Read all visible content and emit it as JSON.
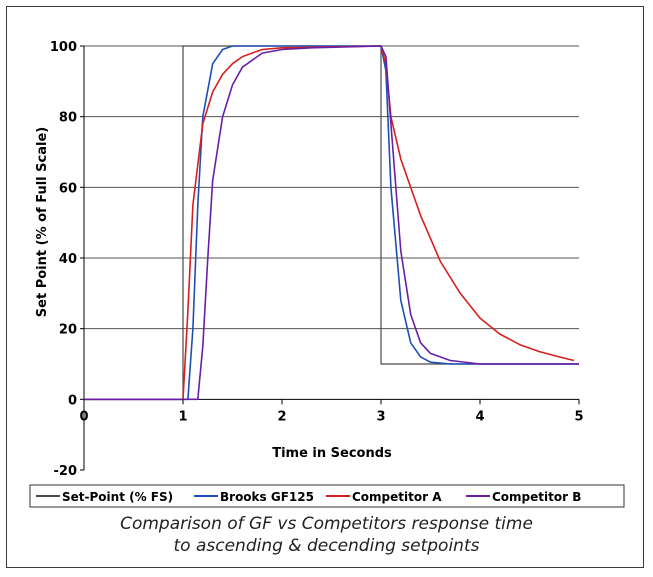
{
  "chart_data": {
    "type": "line",
    "xlabel": "Time in Seconds",
    "ylabel": "Set Point (% of Full Scale)",
    "xlim": [
      0,
      5
    ],
    "ylim": [
      -20,
      100
    ],
    "x_ticks": [
      0,
      1,
      2,
      3,
      4,
      5
    ],
    "y_ticks": [
      100,
      80,
      60,
      40,
      20,
      0,
      -20
    ],
    "grid": "horizontal",
    "legend_position": "bottom",
    "series": [
      {
        "name": "Set-Point (% FS)",
        "color": "#4a4a4a",
        "points": [
          [
            0,
            0
          ],
          [
            1,
            0
          ],
          [
            1,
            100
          ],
          [
            3,
            100
          ],
          [
            3,
            10
          ],
          [
            5,
            10
          ]
        ]
      },
      {
        "name": "Brooks GF125",
        "color": "#1f4fb4",
        "points": [
          [
            0,
            0
          ],
          [
            1.05,
            0
          ],
          [
            1.1,
            20
          ],
          [
            1.15,
            55
          ],
          [
            1.2,
            80
          ],
          [
            1.3,
            95
          ],
          [
            1.4,
            99
          ],
          [
            1.5,
            100
          ],
          [
            3.0,
            100
          ],
          [
            3.05,
            93
          ],
          [
            3.1,
            60
          ],
          [
            3.2,
            28
          ],
          [
            3.3,
            16
          ],
          [
            3.4,
            12
          ],
          [
            3.5,
            10.5
          ],
          [
            3.7,
            10
          ],
          [
            5,
            10
          ]
        ]
      },
      {
        "name": "Competitor A",
        "color": "#d62020",
        "points": [
          [
            0,
            0
          ],
          [
            1.0,
            0
          ],
          [
            1.05,
            25
          ],
          [
            1.1,
            55
          ],
          [
            1.2,
            78
          ],
          [
            1.3,
            87
          ],
          [
            1.4,
            92
          ],
          [
            1.5,
            95
          ],
          [
            1.6,
            97
          ],
          [
            1.8,
            99
          ],
          [
            2.0,
            99.5
          ],
          [
            3.0,
            100
          ],
          [
            3.05,
            95
          ],
          [
            3.1,
            80
          ],
          [
            3.2,
            68
          ],
          [
            3.4,
            52
          ],
          [
            3.6,
            39
          ],
          [
            3.8,
            30
          ],
          [
            4.0,
            23
          ],
          [
            4.2,
            18.5
          ],
          [
            4.4,
            15.5
          ],
          [
            4.6,
            13.5
          ],
          [
            4.8,
            12
          ],
          [
            4.95,
            11
          ]
        ]
      },
      {
        "name": "Competitor B",
        "color": "#6a1fa6",
        "points": [
          [
            0,
            0
          ],
          [
            1.15,
            0
          ],
          [
            1.2,
            15
          ],
          [
            1.25,
            40
          ],
          [
            1.3,
            62
          ],
          [
            1.4,
            80
          ],
          [
            1.5,
            89
          ],
          [
            1.6,
            94
          ],
          [
            1.8,
            98
          ],
          [
            2.0,
            99
          ],
          [
            2.3,
            99.5
          ],
          [
            3.0,
            100
          ],
          [
            3.05,
            97
          ],
          [
            3.1,
            78
          ],
          [
            3.2,
            42
          ],
          [
            3.3,
            24
          ],
          [
            3.4,
            16
          ],
          [
            3.5,
            13
          ],
          [
            3.7,
            11
          ],
          [
            4.0,
            10
          ],
          [
            5,
            10
          ]
        ]
      }
    ]
  },
  "caption": {
    "line1": "Comparison of GF vs Competitors response time",
    "line2": "to ascending & decending setpoints"
  }
}
